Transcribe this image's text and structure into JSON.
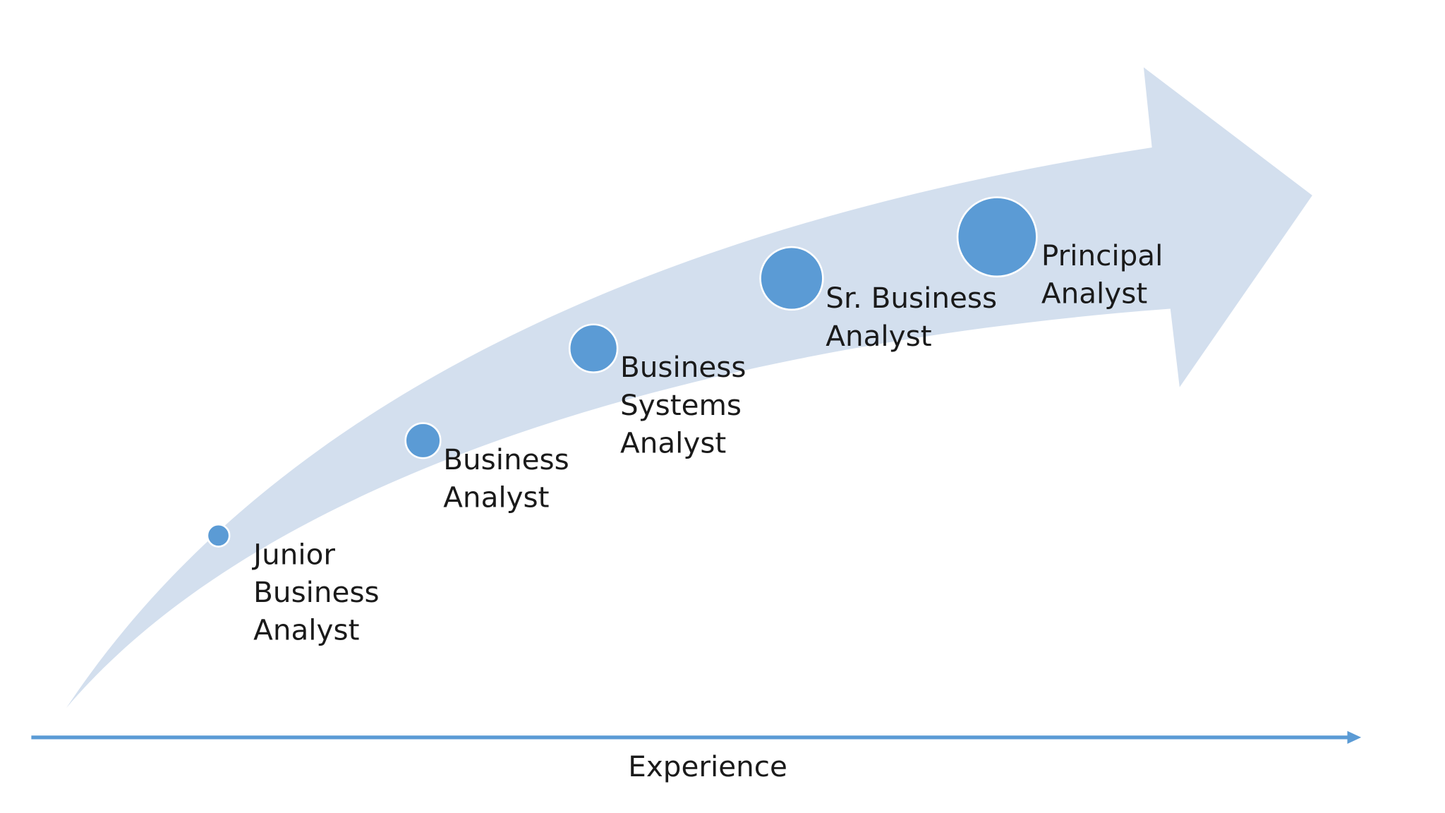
{
  "nodes": [
    {
      "label": [
        "Junior",
        "Business",
        "Analyst"
      ]
    },
    {
      "label": [
        "Business",
        "Analyst"
      ]
    },
    {
      "label": [
        "Business",
        "Systems",
        "Analyst"
      ]
    },
    {
      "label": [
        "Sr. Business",
        "Analyst"
      ]
    },
    {
      "label": [
        "Principal",
        "Analyst"
      ]
    }
  ],
  "axis_label": "Experience"
}
